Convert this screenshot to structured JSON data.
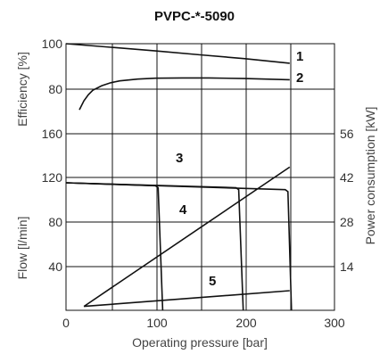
{
  "chart_data": {
    "type": "line",
    "title": "PVPC-*-5090",
    "xlabel": "Operating pressure  [bar]",
    "xlim": [
      0,
      300
    ],
    "x_ticks": [
      "0",
      "100",
      "200",
      "300"
    ],
    "efficiency_panel": {
      "ylabel": "Efficiency [%]",
      "ylim": [
        70,
        100
      ],
      "y_ticks": [
        "100",
        "80"
      ],
      "series": [
        {
          "name": "1",
          "x": [
            0,
            50,
            100,
            150,
            200,
            250
          ],
          "y": [
            100,
            98.8,
            97.6,
            96.3,
            95,
            93.5
          ]
        },
        {
          "name": "2",
          "x": [
            15,
            20,
            25,
            30,
            40,
            50,
            60,
            80,
            100,
            130,
            160,
            200,
            250
          ],
          "y": [
            78,
            81,
            83,
            84.5,
            86,
            87,
            87.6,
            88.2,
            88.5,
            88.6,
            88.6,
            88.4,
            88
          ]
        }
      ]
    },
    "flow_panel": {
      "ylabel": "Flow [l/min]",
      "ylabel_right": "Power consumption [kW]",
      "ylim": [
        0,
        180
      ],
      "y_ticks": [
        "160",
        "120",
        "80",
        "40"
      ],
      "y_right_ticks": [
        "56",
        "42",
        "28",
        "14"
      ],
      "series": [
        {
          "name": "3",
          "x": [
            0,
            100,
            103,
            108
          ],
          "y": [
            130,
            127,
            125,
            0
          ]
        },
        {
          "name": "3",
          "x": [
            0,
            190,
            193,
            198
          ],
          "y": [
            130,
            125,
            123,
            0
          ]
        },
        {
          "name": "3",
          "x": [
            0,
            245,
            248,
            252
          ],
          "y": [
            130,
            123,
            121,
            0
          ]
        },
        {
          "name": "4",
          "x": [
            20,
            250
          ],
          "y": [
            4,
            146
          ]
        },
        {
          "name": "5",
          "x": [
            20,
            250
          ],
          "y": [
            4,
            20
          ]
        }
      ]
    }
  }
}
